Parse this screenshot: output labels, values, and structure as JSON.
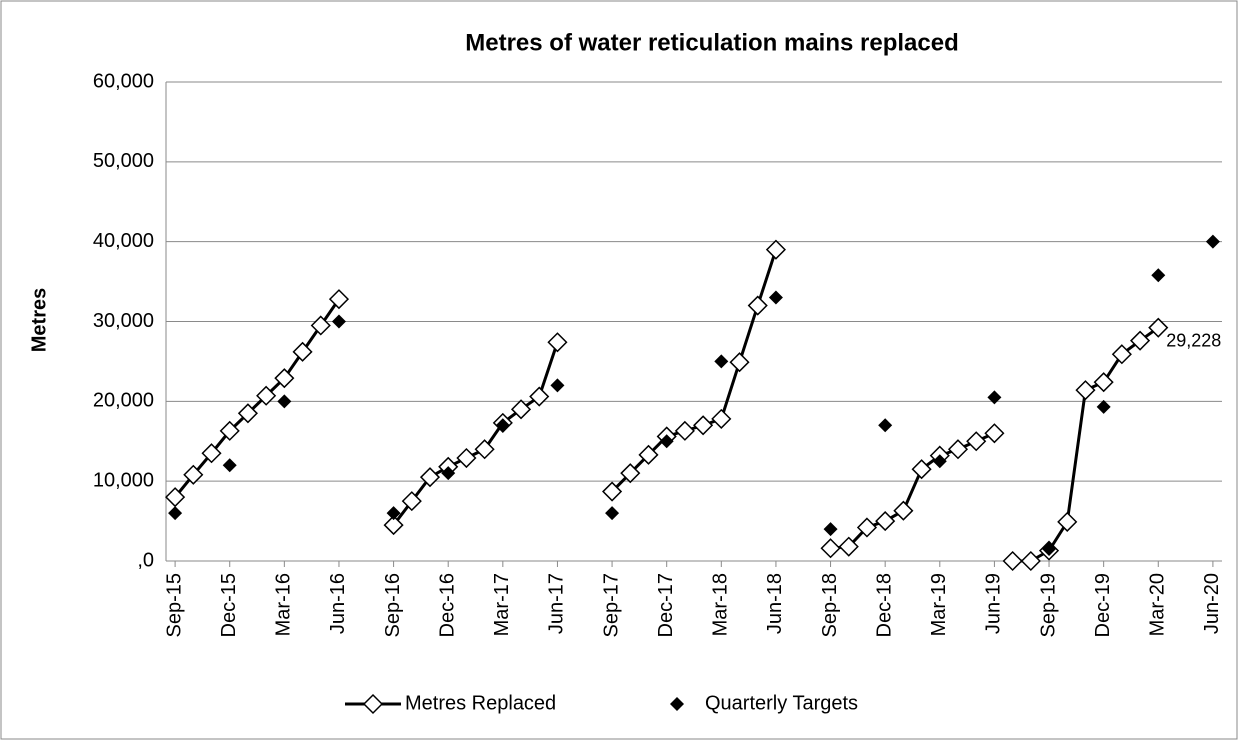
{
  "chart_data": {
    "type": "line",
    "title": "Metres of water reticulation mains replaced",
    "y_label": "Metres",
    "categories": [
      "Sep-15",
      null,
      null,
      "Dec-15",
      null,
      null,
      "Mar-16",
      null,
      null,
      "Jun-16",
      null,
      null,
      "Sep-16",
      null,
      null,
      "Dec-16",
      null,
      null,
      "Mar-17",
      null,
      null,
      "Jun-17",
      null,
      null,
      "Sep-17",
      null,
      null,
      "Dec-17",
      null,
      null,
      "Mar-18",
      null,
      null,
      "Jun-18",
      null,
      null,
      "Sep-18",
      null,
      null,
      "Dec-18",
      null,
      null,
      "Mar-19",
      null,
      null,
      "Jun-19",
      null,
      null,
      "Sep-19",
      null,
      null,
      "Dec-19",
      null,
      null,
      "Mar-20",
      null,
      null,
      "Jun-20"
    ],
    "series": [
      {
        "name": "Metres Replaced",
        "color": "#000000",
        "style": "line",
        "values": [
          8000,
          10800,
          13500,
          16300,
          18500,
          20700,
          22900,
          26200,
          29500,
          32800,
          null,
          null,
          4500,
          7500,
          10500,
          11800,
          12900,
          14000,
          17300,
          19000,
          20600,
          27400,
          null,
          null,
          8700,
          11000,
          13300,
          15600,
          16300,
          17000,
          17800,
          24900,
          32000,
          39000,
          null,
          null,
          1600,
          1800,
          4200,
          5000,
          6300,
          11500,
          13200,
          14000,
          15000,
          16000,
          null,
          null,
          null,
          null,
          null,
          null,
          null,
          null,
          null,
          null,
          null,
          null
        ]
      },
      {
        "color": "#000000",
        "style": "line",
        "values": [
          null,
          null,
          null,
          null,
          null,
          null,
          null,
          null,
          null,
          null,
          null,
          null,
          null,
          null,
          null,
          null,
          null,
          null,
          null,
          null,
          null,
          null,
          null,
          null,
          null,
          null,
          null,
          null,
          null,
          null,
          null,
          null,
          null,
          null,
          null,
          null,
          null,
          null,
          null,
          null,
          null,
          null,
          null,
          null,
          null,
          null,
          0,
          0,
          1300,
          4900,
          21400,
          22400,
          25900,
          27600,
          29228,
          null,
          null,
          null
        ],
        "value_labels": [
          null,
          null,
          null,
          null,
          null,
          null,
          null,
          null,
          null,
          null,
          null,
          null,
          null,
          null,
          null,
          null,
          null,
          null,
          null,
          null,
          null,
          null,
          null,
          null,
          null,
          null,
          null,
          null,
          null,
          null,
          null,
          null,
          null,
          null,
          null,
          null,
          null,
          null,
          null,
          null,
          null,
          null,
          null,
          null,
          null,
          null,
          null,
          null,
          null,
          null,
          null,
          null,
          null,
          null,
          "29,228",
          null,
          null,
          null
        ]
      },
      {
        "name": "Quarterly Targets",
        "color": "#000000",
        "style": "markers",
        "values": [
          6000,
          null,
          null,
          12000,
          null,
          null,
          20000,
          null,
          null,
          30000,
          null,
          null,
          6000,
          null,
          null,
          11000,
          null,
          null,
          17000,
          null,
          null,
          22000,
          null,
          null,
          6000,
          null,
          null,
          15000,
          null,
          null,
          25000,
          null,
          null,
          33000,
          null,
          null,
          4000,
          null,
          null,
          17000,
          null,
          null,
          12500,
          null,
          null,
          20500,
          null,
          null,
          1500,
          null,
          null,
          19300,
          null,
          null,
          35800,
          null,
          null,
          40000
        ]
      }
    ],
    "ylim": [
      0,
      60000
    ],
    "yticks": [
      {
        "value": 0,
        "label": ",0"
      },
      {
        "value": 10000,
        "label": "10,000"
      },
      {
        "value": 20000,
        "label": "20,000"
      },
      {
        "value": 30000,
        "label": "30,000"
      },
      {
        "value": 40000,
        "label": "40,000"
      },
      {
        "value": 50000,
        "label": "50,000"
      },
      {
        "value": 60000,
        "label": "60,000"
      }
    ],
    "grid": true,
    "legend": "bottom"
  }
}
